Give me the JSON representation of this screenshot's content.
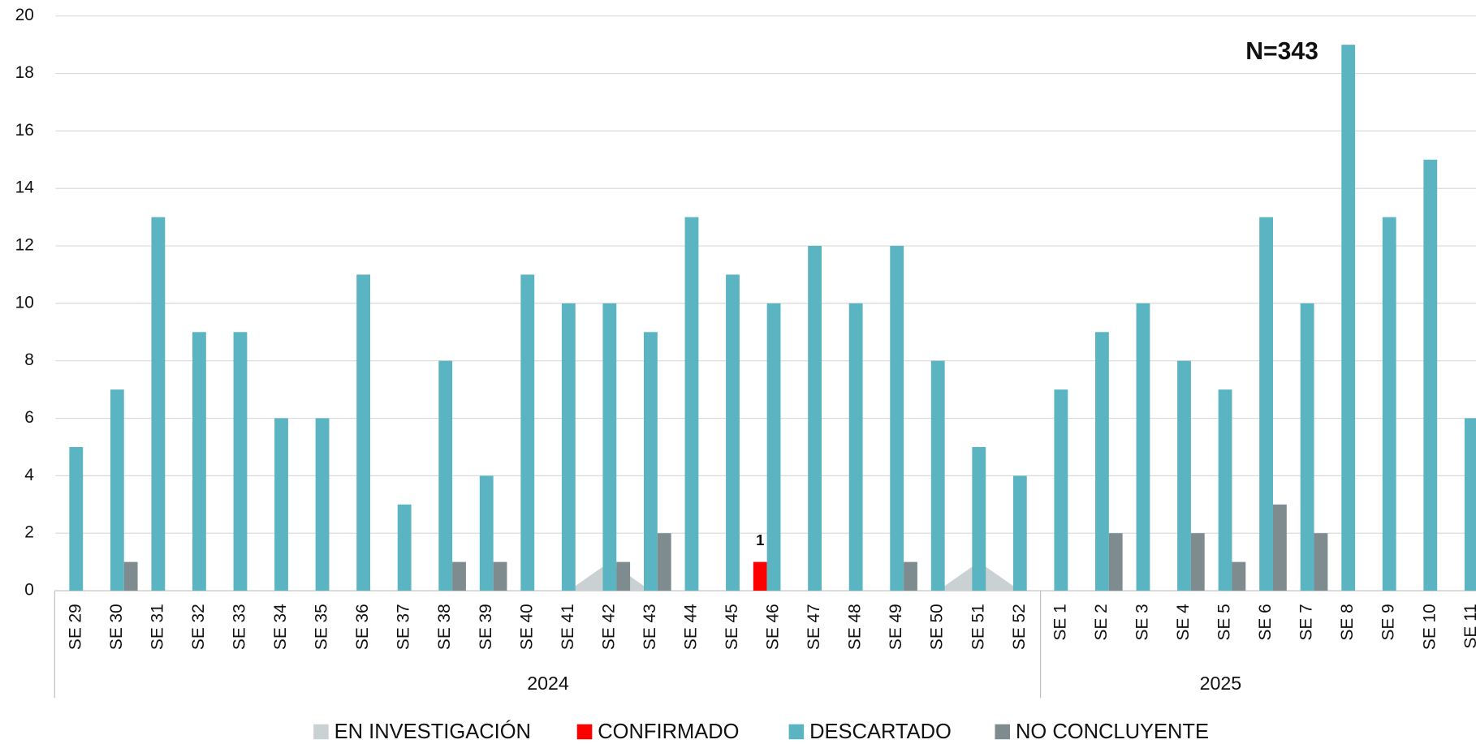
{
  "chart_data": {
    "type": "bar",
    "annotation": "N=343",
    "categories": [
      "SE 29",
      "SE 30",
      "SE 31",
      "SE 32",
      "SE 33",
      "SE 34",
      "SE 35",
      "SE 36",
      "SE 37",
      "SE 38",
      "SE 39",
      "SE 40",
      "SE 41",
      "SE 42",
      "SE 43",
      "SE 44",
      "SE 45",
      "SE 46",
      "SE 47",
      "SE 48",
      "SE 49",
      "SE 50",
      "SE 51",
      "SE 52",
      "SE 1",
      "SE 2",
      "SE 3",
      "SE 4",
      "SE 5",
      "SE 6",
      "SE 7",
      "SE 8",
      "SE 9",
      "SE 10",
      "SE 11"
    ],
    "groups": [
      {
        "name": "2024",
        "count": 24
      },
      {
        "name": "2025",
        "count": 11
      }
    ],
    "series": [
      {
        "name": "EN INVESTIGACIÓN",
        "color": "#c9d1d3",
        "type": "area",
        "values": [
          0,
          0,
          0,
          0,
          0,
          0,
          0,
          0,
          0,
          0,
          0,
          0,
          0,
          1,
          0,
          0,
          0,
          0,
          0,
          0,
          0,
          0,
          1,
          0,
          0,
          0,
          0,
          0,
          0,
          0,
          0,
          0,
          0,
          0,
          0
        ]
      },
      {
        "name": "CONFIRMADO",
        "color": "#ff0000",
        "data_labels": true,
        "values": [
          null,
          null,
          null,
          null,
          null,
          null,
          null,
          null,
          null,
          null,
          null,
          null,
          null,
          null,
          null,
          null,
          null,
          1,
          null,
          null,
          null,
          null,
          null,
          null,
          null,
          null,
          null,
          null,
          null,
          null,
          null,
          null,
          null,
          null,
          null
        ]
      },
      {
        "name": "DESCARTADO",
        "color": "#5ab4c1",
        "values": [
          5,
          7,
          13,
          9,
          9,
          6,
          6,
          11,
          3,
          8,
          4,
          11,
          10,
          10,
          9,
          13,
          11,
          10,
          12,
          10,
          12,
          8,
          5,
          4,
          7,
          9,
          10,
          8,
          7,
          13,
          10,
          19,
          13,
          15,
          6
        ]
      },
      {
        "name": "NO CONCLUYENTE",
        "color": "#7f8c8f",
        "values": [
          null,
          1,
          null,
          null,
          null,
          null,
          null,
          null,
          null,
          1,
          1,
          null,
          null,
          1,
          2,
          null,
          null,
          null,
          null,
          null,
          1,
          null,
          null,
          null,
          null,
          2,
          null,
          2,
          1,
          3,
          2,
          null,
          null,
          null,
          null
        ]
      }
    ],
    "ylim": [
      0,
      20
    ],
    "yticks": [
      0,
      2,
      4,
      6,
      8,
      10,
      12,
      14,
      16,
      18,
      20
    ],
    "grid": true
  }
}
